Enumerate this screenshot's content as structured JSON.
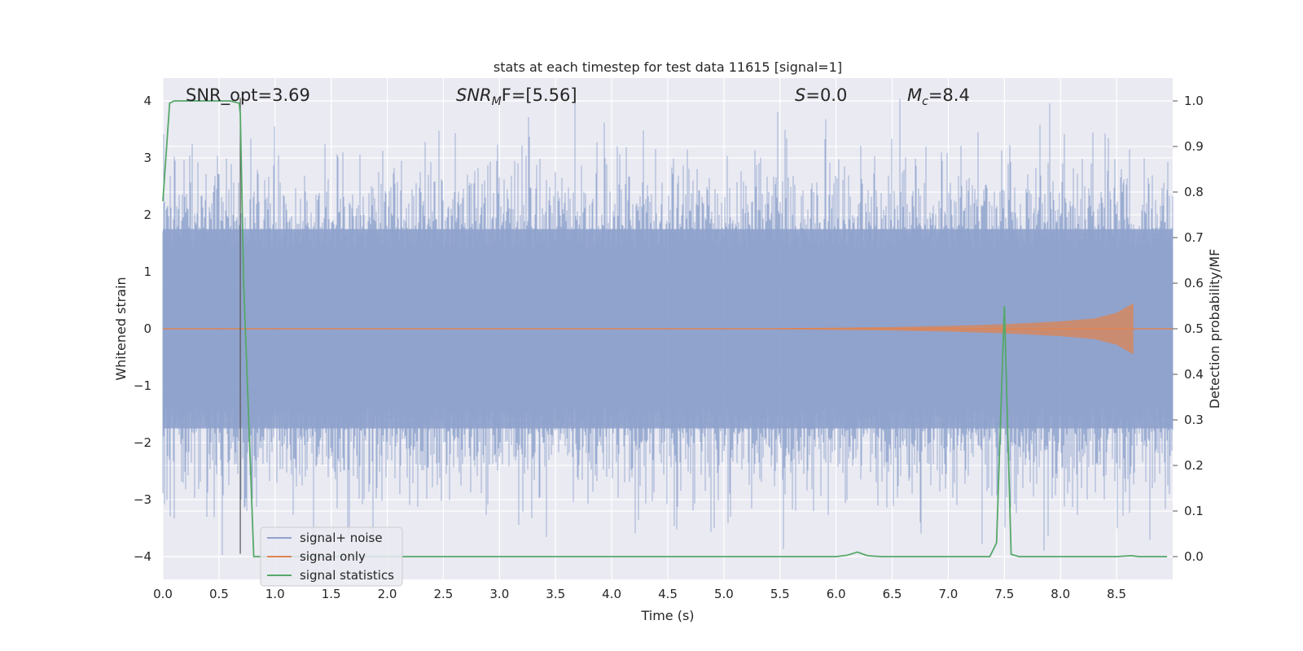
{
  "chart_data": {
    "type": "line",
    "title": "stats at each timestep for test data 11615 [signal=1]",
    "xlabel": "Time (s)",
    "ylabel": "Whitened strain",
    "y2label": "Detection probability/MF",
    "xlim": [
      0.0,
      9.0
    ],
    "ylim": [
      -4.4,
      4.4
    ],
    "y2lim": [
      -0.05,
      1.05
    ],
    "xticks": [
      "0.0",
      "0.5",
      "1.0",
      "1.5",
      "2.0",
      "2.5",
      "3.0",
      "3.5",
      "4.0",
      "4.5",
      "5.0",
      "5.5",
      "6.0",
      "6.5",
      "7.0",
      "7.5",
      "8.0",
      "8.5"
    ],
    "yticks": [
      "−4",
      "−3",
      "−2",
      "−1",
      "0",
      "1",
      "2",
      "3",
      "4"
    ],
    "y2ticks": [
      "0.0",
      "0.1",
      "0.2",
      "0.3",
      "0.4",
      "0.5",
      "0.6",
      "0.7",
      "0.8",
      "0.9",
      "1.0"
    ],
    "grid": true,
    "legend_position": "lower-left",
    "annotations": {
      "snr_opt": "SNR_opt=3.69",
      "snr_mf_main": "SNR",
      "snr_mf_sub": "M",
      "snr_mf_rest": "F=[5.56]",
      "s_main": "S",
      "s_rest": "=0.0",
      "mc_main": "M",
      "mc_sub": "c",
      "mc_rest": "=8.4"
    },
    "vline_x": 0.69,
    "series": [
      {
        "name": "signal+ noise",
        "color": "#8ea2cc",
        "note": "whitened noise, approx. band -2.0..2.0 with peaks to about ±4"
      },
      {
        "name": "signal only",
        "color": "#dd8452",
        "envelope": {
          "x": [
            5.5,
            6.0,
            6.5,
            7.0,
            7.5,
            8.0,
            8.3,
            8.5,
            8.65
          ],
          "amplitude": [
            0.01,
            0.02,
            0.03,
            0.05,
            0.08,
            0.13,
            0.18,
            0.28,
            0.45
          ]
        }
      },
      {
        "name": "signal statistics",
        "color": "#55a868",
        "axis": "right",
        "x": [
          0.0,
          0.06,
          0.1,
          0.2,
          0.3,
          0.4,
          0.5,
          0.6,
          0.68,
          0.69,
          0.72,
          0.78,
          0.81,
          1.0,
          2.0,
          3.0,
          4.0,
          5.0,
          6.0,
          6.1,
          6.19,
          6.28,
          6.4,
          7.0,
          7.37,
          7.43,
          7.5,
          7.56,
          7.63,
          8.0,
          8.5,
          8.63,
          8.7,
          8.95
        ],
        "y": [
          0.78,
          0.995,
          1.0,
          1.0,
          1.0,
          1.0,
          1.0,
          1.0,
          0.995,
          0.97,
          0.6,
          0.2,
          0.0,
          0.0,
          0.0,
          0.0,
          0.0,
          0.0,
          0.0,
          0.003,
          0.01,
          0.002,
          0.0,
          0.0,
          0.0,
          0.03,
          0.55,
          0.005,
          0.0,
          0.0,
          0.0,
          0.002,
          0.0,
          0.0
        ]
      }
    ]
  }
}
